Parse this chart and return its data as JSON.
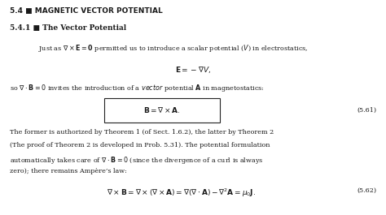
{
  "background_color": "#ffffff",
  "title_section": "5.4 ■ MAGNETIC VECTOR POTENTIAL",
  "subsection": "5.4.1 ■ The Vector Potential",
  "text_color": "#1a1a1a",
  "fontsize_title": 6.5,
  "fontsize_subsection": 6.5,
  "fontsize_body": 5.8,
  "fontsize_eq": 6.5,
  "fontsize_eq_num": 5.8,
  "line1": "Just as $\\nabla \\times \\mathbf{E} = \\mathbf{0}$ permitted us to introduce a scalar potential ($V$) in electrostatics,",
  "eq1": "$\\mathbf{E} = -\\nabla V,$",
  "line2a": "so $\\nabla \\cdot \\mathbf{B} = 0$ invites the introduction of a $\\mathit{vector}$ potential $\\mathbf{A}$ in magnetostatics:",
  "eq_boxed": "$\\mathbf{B} = \\nabla \\times \\mathbf{A}.$",
  "eq1_num": "(5.61)",
  "para1": "The former is authorized by Theorem 1 (of Sect. 1.6.2), the latter by Theorem 2",
  "para2": "(The proof of Theorem 2 is developed in Prob. 5.31). The potential formulation",
  "para3": "automatically takes care of $\\nabla \\cdot \\mathbf{B} = 0$ (since the divergence of a curl is always",
  "para4": "zero); there remains Ampère’s law:",
  "eq2": "$\\nabla \\times \\mathbf{B} = \\nabla \\times (\\nabla \\times \\mathbf{A}) = \\nabla(\\nabla \\cdot \\mathbf{A}) - \\nabla^2\\mathbf{A} = \\mu_0\\mathbf{J}.$",
  "eq2_num": "(5.62)"
}
